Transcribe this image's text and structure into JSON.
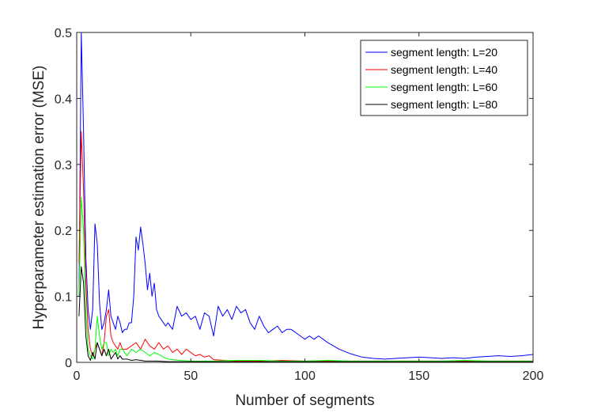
{
  "chart_data": {
    "type": "line",
    "title": "",
    "xlabel": "Number of segments",
    "ylabel": "Hyperparameter estimation error (MSE)",
    "xlim": [
      0,
      200
    ],
    "ylim": [
      0,
      0.5
    ],
    "x_ticks": [
      0,
      50,
      100,
      150,
      200
    ],
    "y_ticks": [
      0,
      0.1,
      0.2,
      0.3,
      0.4,
      0.5
    ],
    "x_tick_labels": [
      "0",
      "50",
      "100",
      "150",
      "200"
    ],
    "y_tick_labels": [
      "0",
      "0.1",
      "0.2",
      "0.3",
      "0.4",
      "0.5"
    ],
    "grid": false,
    "legend_position": "top-right",
    "series": [
      {
        "name": "segment length: L=20",
        "color": "#0000ff",
        "x": [
          1,
          2,
          3,
          4,
          5,
          6,
          7,
          8,
          9,
          10,
          11,
          12,
          13,
          14,
          15,
          16,
          17,
          18,
          19,
          20,
          21,
          22,
          23,
          24,
          25,
          26,
          27,
          28,
          29,
          30,
          31,
          32,
          33,
          34,
          35,
          36,
          37,
          38,
          39,
          40,
          42,
          44,
          46,
          48,
          50,
          52,
          54,
          56,
          58,
          60,
          62,
          64,
          66,
          68,
          70,
          72,
          74,
          76,
          78,
          80,
          82,
          84,
          86,
          88,
          90,
          92,
          94,
          96,
          98,
          100,
          102,
          104,
          106,
          108,
          110,
          115,
          120,
          125,
          130,
          135,
          140,
          145,
          150,
          155,
          160,
          165,
          170,
          175,
          180,
          185,
          190,
          195,
          200
        ],
        "y": [
          0.1,
          0.5,
          0.35,
          0.16,
          0.08,
          0.05,
          0.08,
          0.21,
          0.18,
          0.09,
          0.05,
          0.06,
          0.08,
          0.11,
          0.07,
          0.06,
          0.05,
          0.07,
          0.06,
          0.045,
          0.05,
          0.05,
          0.06,
          0.06,
          0.1,
          0.19,
          0.17,
          0.205,
          0.18,
          0.15,
          0.11,
          0.135,
          0.1,
          0.12,
          0.08,
          0.07,
          0.065,
          0.06,
          0.055,
          0.06,
          0.05,
          0.085,
          0.07,
          0.075,
          0.065,
          0.07,
          0.05,
          0.075,
          0.07,
          0.04,
          0.085,
          0.07,
          0.08,
          0.065,
          0.085,
          0.075,
          0.08,
          0.06,
          0.05,
          0.07,
          0.055,
          0.045,
          0.05,
          0.055,
          0.045,
          0.05,
          0.05,
          0.045,
          0.04,
          0.035,
          0.04,
          0.035,
          0.04,
          0.035,
          0.03,
          0.02,
          0.013,
          0.008,
          0.006,
          0.005,
          0.006,
          0.007,
          0.008,
          0.007,
          0.006,
          0.007,
          0.006,
          0.008,
          0.009,
          0.01,
          0.009,
          0.01,
          0.012
        ]
      },
      {
        "name": "segment length: L=40",
        "color": "#ff0000",
        "x": [
          1,
          2,
          3,
          4,
          5,
          6,
          7,
          8,
          9,
          10,
          11,
          12,
          13,
          14,
          15,
          16,
          17,
          18,
          19,
          20,
          22,
          24,
          26,
          28,
          30,
          32,
          34,
          36,
          38,
          40,
          42,
          44,
          46,
          48,
          50,
          52,
          54,
          56,
          58,
          60,
          65,
          70,
          75,
          80,
          90,
          100,
          110,
          120,
          130,
          140,
          150,
          160,
          170,
          180,
          190,
          200
        ],
        "y": [
          0.15,
          0.35,
          0.26,
          0.12,
          0.05,
          0.02,
          0.01,
          0.02,
          0.03,
          0.02,
          0.01,
          0.03,
          0.07,
          0.08,
          0.04,
          0.03,
          0.025,
          0.02,
          0.03,
          0.02,
          0.02,
          0.025,
          0.03,
          0.02,
          0.035,
          0.025,
          0.02,
          0.03,
          0.02,
          0.025,
          0.015,
          0.02,
          0.012,
          0.02,
          0.015,
          0.01,
          0.012,
          0.008,
          0.01,
          0.004,
          0.003,
          0.002,
          0.002,
          0.002,
          0.003,
          0.002,
          0.002,
          0.002,
          0.002,
          0.002,
          0.002,
          0.002,
          0.002,
          0.002,
          0.002,
          0.002
        ]
      },
      {
        "name": "segment length: L=60",
        "color": "#00ff00",
        "x": [
          1,
          2,
          3,
          4,
          5,
          6,
          7,
          8,
          9,
          10,
          11,
          12,
          13,
          14,
          15,
          16,
          17,
          18,
          19,
          20,
          22,
          24,
          26,
          28,
          30,
          32,
          34,
          36,
          38,
          40,
          45,
          50,
          55,
          60,
          70,
          80,
          90,
          100,
          110,
          120,
          130,
          140,
          150,
          160,
          170,
          180,
          190,
          200
        ],
        "y": [
          0.1,
          0.25,
          0.2,
          0.08,
          0.02,
          0.01,
          0.005,
          0.02,
          0.07,
          0.04,
          0.02,
          0.03,
          0.03,
          0.01,
          0.02,
          0.015,
          0.02,
          0.01,
          0.02,
          0.02,
          0.01,
          0.02,
          0.015,
          0.02,
          0.015,
          0.01,
          0.015,
          0.012,
          0.008,
          0.005,
          0.003,
          0.002,
          0.002,
          0.002,
          0.003,
          0.003,
          0.002,
          0.002,
          0.003,
          0.002,
          0.002,
          0.002,
          0.002,
          0.002,
          0.003,
          0.002,
          0.002,
          0.002
        ]
      },
      {
        "name": "segment length: L=80",
        "color": "#000000",
        "x": [
          1,
          2,
          3,
          4,
          5,
          6,
          7,
          8,
          9,
          10,
          11,
          12,
          13,
          14,
          15,
          16,
          17,
          18,
          19,
          20,
          22,
          24,
          26,
          28,
          30,
          35,
          40,
          50,
          60,
          80,
          100,
          120,
          140,
          160,
          180,
          200
        ],
        "y": [
          0.07,
          0.145,
          0.12,
          0.04,
          0.01,
          0.003,
          0.015,
          0.005,
          0.03,
          0.02,
          0.01,
          0.02,
          0.01,
          0.02,
          0.005,
          0.01,
          0.015,
          0.005,
          0.01,
          0.005,
          0.005,
          0.003,
          0.004,
          0.003,
          0.002,
          0.002,
          0.001,
          0.001,
          0.001,
          0.001,
          0.001,
          0.001,
          0.001,
          0.001,
          0.001,
          0.001
        ]
      }
    ]
  }
}
